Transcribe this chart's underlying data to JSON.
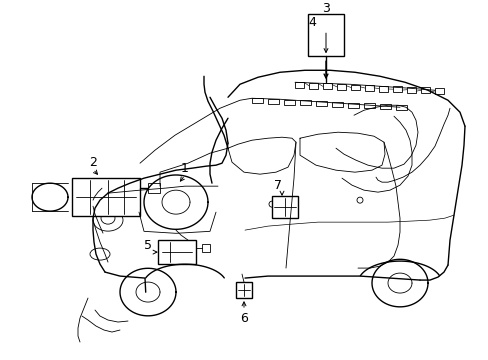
{
  "background_color": "#ffffff",
  "line_color": "#000000",
  "figsize": [
    4.89,
    3.6
  ],
  "dpi": 100,
  "label_fontsize": 9,
  "lw_main": 1.0,
  "lw_thin": 0.6,
  "lw_label": 0.7
}
